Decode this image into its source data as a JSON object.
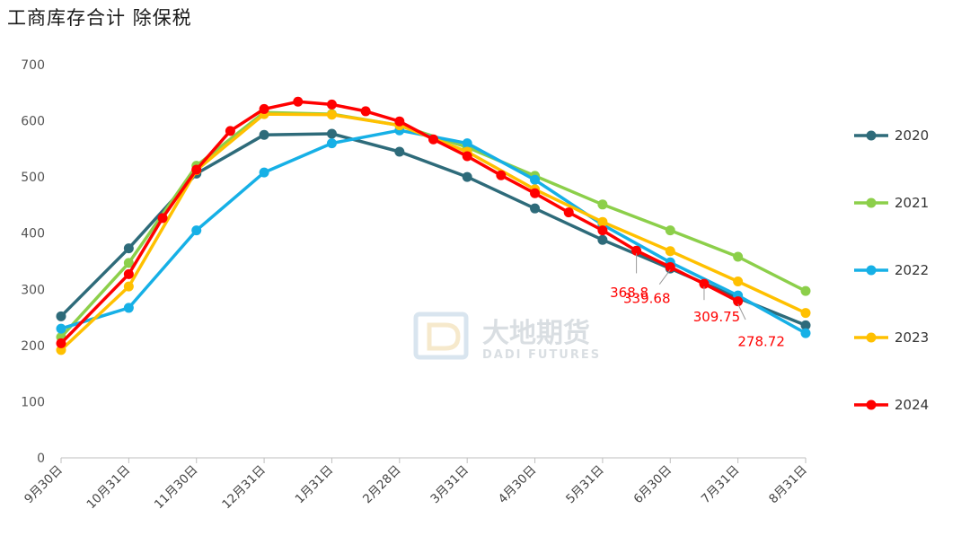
{
  "title": "工商库存合计 除保税",
  "watermark": {
    "cn": "大地期货",
    "en": "DADI FUTURES"
  },
  "chart_data": {
    "type": "line",
    "title": "工商库存合计 除保税",
    "ylim": [
      0,
      700
    ],
    "yticks": [
      0,
      100,
      200,
      300,
      400,
      500,
      600,
      700
    ],
    "xlim": [
      0,
      11
    ],
    "xticks": [
      {
        "x": 0,
        "label": "9月30日"
      },
      {
        "x": 1,
        "label": "10月31日"
      },
      {
        "x": 2,
        "label": "11月30日"
      },
      {
        "x": 3,
        "label": "12月31日"
      },
      {
        "x": 4,
        "label": "1月31日"
      },
      {
        "x": 5,
        "label": "2月28日"
      },
      {
        "x": 6,
        "label": "3月31日"
      },
      {
        "x": 7,
        "label": "4月30日"
      },
      {
        "x": 8,
        "label": "5月31日"
      },
      {
        "x": 9,
        "label": "6月30日"
      },
      {
        "x": 10,
        "label": "7月31日"
      },
      {
        "x": 11,
        "label": "8月31日"
      }
    ],
    "legend_position": "right",
    "series": [
      {
        "name": "2020",
        "color": "#2e6b7a",
        "points": [
          [
            0,
            252
          ],
          [
            1,
            373
          ],
          [
            2,
            506
          ],
          [
            3,
            575
          ],
          [
            4,
            577
          ],
          [
            5,
            545
          ],
          [
            6,
            500
          ],
          [
            7,
            444
          ],
          [
            8,
            388
          ],
          [
            9,
            337
          ],
          [
            10,
            285
          ],
          [
            11,
            236
          ]
        ]
      },
      {
        "name": "2021",
        "color": "#8ccf4a",
        "points": [
          [
            0,
            215
          ],
          [
            1,
            347
          ],
          [
            2,
            520
          ],
          [
            3,
            615
          ],
          [
            4,
            612
          ],
          [
            5,
            592
          ],
          [
            6,
            553
          ],
          [
            7,
            502
          ],
          [
            8,
            451
          ],
          [
            9,
            405
          ],
          [
            10,
            358
          ],
          [
            11,
            297
          ]
        ]
      },
      {
        "name": "2022",
        "color": "#16b0e6",
        "points": [
          [
            0,
            230
          ],
          [
            1,
            267
          ],
          [
            2,
            405
          ],
          [
            3,
            508
          ],
          [
            4,
            560
          ],
          [
            5,
            583
          ],
          [
            6,
            560
          ],
          [
            7,
            495
          ],
          [
            8,
            415
          ],
          [
            9,
            348
          ],
          [
            10,
            289
          ],
          [
            11,
            222
          ]
        ]
      },
      {
        "name": "2023",
        "color": "#ffc000",
        "points": [
          [
            0,
            192
          ],
          [
            1,
            305
          ],
          [
            2,
            512
          ],
          [
            3,
            612
          ],
          [
            4,
            611
          ],
          [
            5,
            592
          ],
          [
            6,
            545
          ],
          [
            7,
            478
          ],
          [
            8,
            420
          ],
          [
            9,
            368
          ],
          [
            10,
            314
          ],
          [
            11,
            258
          ]
        ]
      },
      {
        "name": "2024",
        "color": "#ff0000",
        "points": [
          [
            0,
            204
          ],
          [
            1,
            327
          ],
          [
            1.5,
            427
          ],
          [
            2,
            513
          ],
          [
            2.5,
            582
          ],
          [
            3,
            621
          ],
          [
            3.5,
            634
          ],
          [
            4,
            629
          ],
          [
            4.5,
            617
          ],
          [
            5,
            599
          ],
          [
            5.5,
            567
          ],
          [
            6,
            537
          ],
          [
            6.5,
            503
          ],
          [
            7,
            471
          ],
          [
            7.5,
            437
          ],
          [
            8,
            405
          ],
          [
            8.5,
            368.8
          ],
          [
            9,
            339.68
          ],
          [
            9.5,
            309.75
          ],
          [
            10,
            278.72
          ]
        ]
      }
    ],
    "annotations": [
      {
        "text": "368.8",
        "x": 8.5,
        "y": 368.8,
        "series": "2024"
      },
      {
        "text": "339.68",
        "x": 9,
        "y": 339.68,
        "series": "2024"
      },
      {
        "text": "309.75",
        "x": 9.5,
        "y": 309.75,
        "series": "2024"
      },
      {
        "text": "278.72",
        "x": 10,
        "y": 278.72,
        "series": "2024"
      }
    ]
  }
}
